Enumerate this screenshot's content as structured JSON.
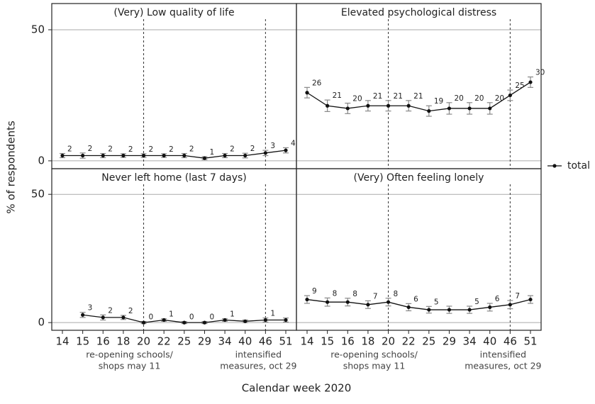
{
  "chart_data": [
    {
      "type": "line",
      "title": "(Very) Low quality of life",
      "categories": [
        "14",
        "15",
        "16",
        "18",
        "20",
        "22",
        "25",
        "29",
        "34",
        "40",
        "46",
        "51"
      ],
      "series": [
        {
          "name": "total",
          "color": "#111111",
          "error_color": "#888888",
          "values": [
            2,
            2,
            2,
            2,
            2,
            2,
            2,
            1,
            2,
            2,
            3,
            4
          ],
          "errors": [
            0.8,
            1,
            0.8,
            0.7,
            0.7,
            0.7,
            0.8,
            0.6,
            0.8,
            0.9,
            1,
            1
          ]
        }
      ],
      "ylim": [
        -3,
        60
      ],
      "yticks": [
        0,
        50
      ],
      "grid": true,
      "vlines": [
        "20",
        "46"
      ]
    },
    {
      "type": "line",
      "title": "Elevated psychological distress",
      "categories": [
        "14",
        "15",
        "16",
        "18",
        "20",
        "22",
        "25",
        "29",
        "34",
        "40",
        "46",
        "51"
      ],
      "series": [
        {
          "name": "total",
          "color": "#111111",
          "error_color": "#888888",
          "values": [
            26,
            21,
            20,
            21,
            21,
            21,
            19,
            20,
            20,
            20,
            25,
            30
          ],
          "errors": [
            2,
            2.2,
            2,
            2,
            2,
            2,
            2,
            2.2,
            2.2,
            2.2,
            2,
            2
          ]
        }
      ],
      "ylim": [
        -3,
        60
      ],
      "yticks": [
        0,
        50
      ],
      "grid": true,
      "vlines": [
        "20",
        "46"
      ]
    },
    {
      "type": "line",
      "title": "Never left home (last 7 days)",
      "categories": [
        "14",
        "15",
        "16",
        "18",
        "20",
        "22",
        "25",
        "29",
        "34",
        "40",
        "46",
        "51"
      ],
      "series": [
        {
          "name": "total",
          "color": "#111111",
          "error_color": "#888888",
          "values": [
            null,
            3,
            2,
            2,
            0,
            1,
            0,
            0,
            1,
            0.5,
            1,
            1
          ],
          "value_labels": [
            null,
            "3",
            "2",
            "2",
            "0",
            "1",
            "0",
            "0",
            "1",
            null,
            "1",
            null
          ],
          "errors": [
            null,
            1,
            1,
            0.8,
            0.4,
            0.5,
            0.4,
            0.4,
            0.5,
            0.5,
            0.8,
            0.8
          ]
        }
      ],
      "ylim": [
        -3,
        60
      ],
      "yticks": [
        0,
        50
      ],
      "grid": true,
      "vlines": [
        "20",
        "46"
      ],
      "annotations": [
        {
          "at": "20",
          "lines": [
            "re-opening schools/",
            "shops may 11"
          ]
        },
        {
          "at": "46",
          "lines": [
            "intensified",
            "measures, oct 29"
          ]
        }
      ]
    },
    {
      "type": "line",
      "title": "(Very) Often feeling lonely",
      "categories": [
        "14",
        "15",
        "16",
        "18",
        "20",
        "22",
        "25",
        "29",
        "34",
        "40",
        "46",
        "51"
      ],
      "series": [
        {
          "name": "total",
          "color": "#111111",
          "error_color": "#888888",
          "values": [
            9,
            8,
            8,
            7,
            8,
            6,
            5,
            5,
            5,
            6,
            7,
            9
          ],
          "value_labels": [
            "9",
            "8",
            "8",
            "7",
            "8",
            "6",
            "5",
            null,
            "5",
            "6",
            "7",
            null
          ],
          "errors": [
            1.5,
            1.6,
            1.5,
            1.5,
            1.5,
            1.4,
            1.3,
            1.4,
            1.4,
            1.5,
            1.6,
            1.5
          ]
        }
      ],
      "ylim": [
        -3,
        60
      ],
      "yticks": [
        0,
        50
      ],
      "grid": true,
      "vlines": [
        "20",
        "46"
      ],
      "annotations": [
        {
          "at": "20",
          "lines": [
            "re-opening schools/",
            "shops may 11"
          ]
        },
        {
          "at": "46",
          "lines": [
            "intensified",
            "measures, oct 29"
          ]
        }
      ]
    }
  ],
  "xlabel": "Calendar week 2020",
  "ylabel": "% of respondents"
}
